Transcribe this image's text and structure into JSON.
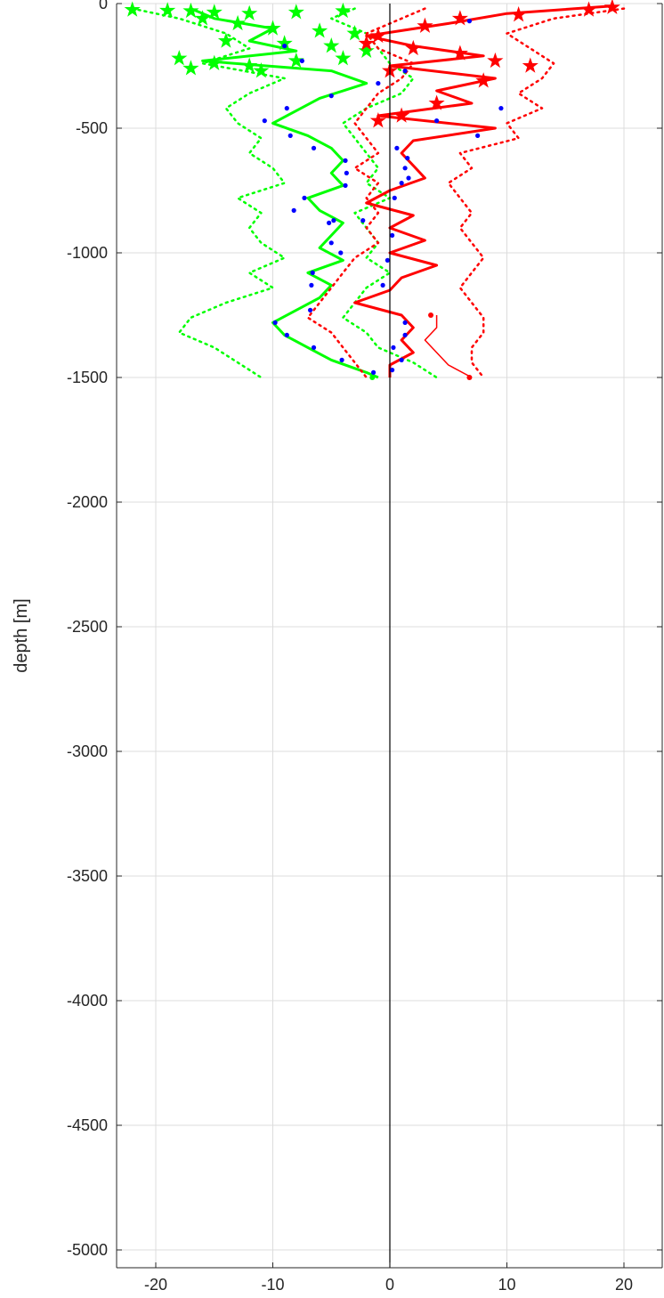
{
  "chart_data": {
    "type": "line",
    "title": "",
    "xlabel": "",
    "ylabel": "depth [m]",
    "xlim": [
      -23.3,
      23.3
    ],
    "ylim": [
      -5100,
      0
    ],
    "xticks": [
      -20,
      -10,
      0,
      10,
      20
    ],
    "xtick_labels": [
      "-20",
      "-10",
      "0",
      "10",
      "20"
    ],
    "yticks": [
      0,
      -500,
      -1000,
      -1500,
      -2000,
      -2500,
      -3000,
      -3500,
      -4000,
      -4500,
      -5000
    ],
    "ytick_labels": [
      "0",
      "-500",
      "-1000",
      "-1500",
      "-2000",
      "-2500",
      "-3000",
      "-3500",
      "-4000",
      "-4500",
      "-5000"
    ],
    "grid": true,
    "zero_line_x": 0,
    "colors": {
      "green": "#00ff00",
      "red": "#ff0000",
      "dots": "#0000ff",
      "grid": "#dcdcdc",
      "axis": "#262626"
    },
    "series": [
      {
        "color": "green",
        "style": "solid-thick",
        "depth": [
          -20,
          -60,
          -100,
          -150,
          -190,
          -230,
          -270,
          -320,
          -380,
          -430,
          -480,
          -530,
          -580,
          -630,
          -680,
          -730,
          -780,
          -830,
          -880,
          -930,
          -980,
          -1030,
          -1080,
          -1130,
          -1180,
          -1230,
          -1280,
          -1330,
          -1380,
          -1430,
          -1480,
          -1500
        ],
        "x": [
          -17,
          -15,
          -10,
          -12,
          -8,
          -16,
          -5,
          -2,
          -6,
          -8,
          -10,
          -7,
          -5,
          -4,
          -5,
          -4,
          -7,
          -6,
          -4,
          -5,
          -6,
          -4,
          -7,
          -5,
          -6,
          -8,
          -10,
          -9,
          -7,
          -5,
          -2,
          -1
        ]
      },
      {
        "color": "green",
        "style": "dotted",
        "depth": [
          -20,
          -60,
          -120,
          -180,
          -240,
          -300,
          -360,
          -420,
          -480,
          -540,
          -600,
          -660,
          -720,
          -780,
          -840,
          -900,
          -960,
          -1020,
          -1080,
          -1140,
          -1200,
          -1260,
          -1320,
          -1380,
          -1440,
          -1500
        ],
        "x": [
          -22,
          -18,
          -14,
          -12,
          -16,
          -9,
          -12,
          -14,
          -13,
          -11,
          -12,
          -10,
          -9,
          -13,
          -11,
          -12,
          -11,
          -9,
          -12,
          -10,
          -14,
          -17,
          -18,
          -15,
          -13,
          -11
        ]
      },
      {
        "color": "green",
        "style": "dotted",
        "depth": [
          -20,
          -60,
          -120,
          -180,
          -240,
          -300,
          -360,
          -420,
          -480,
          -540,
          -600,
          -660,
          -720,
          -780,
          -840,
          -900,
          -960,
          -1020,
          -1080,
          -1140,
          -1200,
          -1260,
          -1320,
          -1380,
          -1440,
          -1500
        ],
        "x": [
          -3,
          -5,
          -2,
          -1,
          0,
          2,
          1,
          -2,
          -4,
          -3,
          -2,
          -1,
          -2,
          0,
          -3,
          -2,
          -1,
          -2,
          0,
          -2,
          -3,
          -4,
          -2,
          -1,
          2,
          4
        ]
      },
      {
        "color": "red",
        "style": "solid-thick",
        "depth": [
          -10,
          -40,
          -80,
          -130,
          -170,
          -210,
          -250,
          -300,
          -350,
          -400,
          -450,
          -500,
          -550,
          -600,
          -650,
          -700,
          -750,
          -800,
          -850,
          -900,
          -950,
          -1000,
          -1050,
          -1100,
          -1150,
          -1200,
          -1250,
          -1300,
          -1350,
          -1400,
          -1450,
          -1500
        ],
        "x": [
          19,
          10,
          5,
          -2,
          2,
          8,
          0,
          9,
          4,
          7,
          -1,
          9,
          2,
          1,
          2,
          3,
          0,
          -2,
          2,
          0,
          3,
          0,
          4,
          1,
          0,
          -3,
          1,
          2,
          1,
          2,
          0,
          0
        ]
      },
      {
        "color": "red",
        "style": "solid-thin",
        "depth": [
          -1250,
          -1300,
          -1350,
          -1400,
          -1450,
          -1500
        ],
        "x": [
          4,
          4,
          3,
          4,
          5,
          7
        ]
      },
      {
        "color": "red",
        "style": "dotted",
        "depth": [
          -20,
          -60,
          -120,
          -180,
          -240,
          -300,
          -360,
          -420,
          -480,
          -540,
          -600,
          -660,
          -720,
          -780,
          -840,
          -900,
          -960,
          -1020,
          -1080,
          -1140,
          -1200,
          -1260,
          -1320,
          -1380,
          -1440,
          -1500
        ],
        "x": [
          20,
          14,
          10,
          12,
          14,
          13,
          11,
          13,
          10,
          11,
          6,
          7,
          5,
          6,
          7,
          6,
          7,
          8,
          7,
          6,
          7,
          8,
          8,
          7,
          7,
          8
        ]
      },
      {
        "color": "red",
        "style": "dotted",
        "depth": [
          -20,
          -60,
          -120,
          -180,
          -240,
          -300,
          -360,
          -420,
          -480,
          -540,
          -600,
          -660,
          -720,
          -780,
          -840,
          -900,
          -960,
          -1020,
          -1080,
          -1140,
          -1200,
          -1260,
          -1320,
          -1380,
          -1440,
          -1500
        ],
        "x": [
          3,
          1,
          -2,
          -1,
          2,
          1,
          -1,
          -2,
          -3,
          -2,
          -1,
          -3,
          -1,
          -2,
          -1,
          -2,
          -1,
          -3,
          -4,
          -5,
          -6,
          -7,
          -5,
          -4,
          -3,
          -2
        ]
      }
    ],
    "markers": {
      "green_stars": [
        {
          "x": -22,
          "y": -25
        },
        {
          "x": -19,
          "y": -28
        },
        {
          "x": -17,
          "y": -30
        },
        {
          "x": -15,
          "y": -35
        },
        {
          "x": -12,
          "y": -40
        },
        {
          "x": -8,
          "y": -35
        },
        {
          "x": -4,
          "y": -30
        },
        {
          "x": -16,
          "y": -60
        },
        {
          "x": -13,
          "y": -80
        },
        {
          "x": -10,
          "y": -100
        },
        {
          "x": -6,
          "y": -110
        },
        {
          "x": -3,
          "y": -120
        },
        {
          "x": -14,
          "y": -150
        },
        {
          "x": -9,
          "y": -160
        },
        {
          "x": -5,
          "y": -170
        },
        {
          "x": -2,
          "y": -190
        },
        {
          "x": -18,
          "y": -220
        },
        {
          "x": -15,
          "y": -240
        },
        {
          "x": -12,
          "y": -250
        },
        {
          "x": -8,
          "y": -230
        },
        {
          "x": -4,
          "y": -220
        },
        {
          "x": -17,
          "y": -260
        },
        {
          "x": -11,
          "y": -270
        }
      ],
      "red_stars": [
        {
          "x": 19,
          "y": -15
        },
        {
          "x": 17,
          "y": -25
        },
        {
          "x": 11,
          "y": -45
        },
        {
          "x": 6,
          "y": -60
        },
        {
          "x": 3,
          "y": -90
        },
        {
          "x": -1,
          "y": -130
        },
        {
          "x": -2,
          "y": -160
        },
        {
          "x": 2,
          "y": -180
        },
        {
          "x": 6,
          "y": -200
        },
        {
          "x": 9,
          "y": -230
        },
        {
          "x": 12,
          "y": -250
        },
        {
          "x": 0,
          "y": -270
        },
        {
          "x": 8,
          "y": -310
        },
        {
          "x": 4,
          "y": -400
        },
        {
          "x": 1,
          "y": -450
        },
        {
          "x": -1,
          "y": -470
        }
      ],
      "blue_dots": [
        {
          "x": 6.8,
          "y": -70
        },
        {
          "x": -9,
          "y": -170
        },
        {
          "x": -7.5,
          "y": -230
        },
        {
          "x": 1.3,
          "y": -270
        },
        {
          "x": -1,
          "y": -320
        },
        {
          "x": -5,
          "y": -370
        },
        {
          "x": 9.5,
          "y": -420
        },
        {
          "x": -8.8,
          "y": -420
        },
        {
          "x": 4,
          "y": -470
        },
        {
          "x": -10.7,
          "y": -470
        },
        {
          "x": 7.5,
          "y": -530
        },
        {
          "x": -8.5,
          "y": -530
        },
        {
          "x": 0.6,
          "y": -580
        },
        {
          "x": -6.5,
          "y": -580
        },
        {
          "x": 1.5,
          "y": -620
        },
        {
          "x": -3.8,
          "y": -630
        },
        {
          "x": 1.3,
          "y": -660
        },
        {
          "x": -3.7,
          "y": -680
        },
        {
          "x": 1.6,
          "y": -700
        },
        {
          "x": -3.8,
          "y": -730
        },
        {
          "x": 1,
          "y": -720
        },
        {
          "x": -7.3,
          "y": -780
        },
        {
          "x": 0.4,
          "y": -780
        },
        {
          "x": -8.2,
          "y": -830
        },
        {
          "x": -4.8,
          "y": -870
        },
        {
          "x": -2.3,
          "y": -870
        },
        {
          "x": -5.2,
          "y": -880
        },
        {
          "x": 0.2,
          "y": -930
        },
        {
          "x": -5,
          "y": -960
        },
        {
          "x": -4.2,
          "y": -1000
        },
        {
          "x": -0.2,
          "y": -1030
        },
        {
          "x": -6.6,
          "y": -1080
        },
        {
          "x": -6.7,
          "y": -1130
        },
        {
          "x": -0.6,
          "y": -1130
        },
        {
          "x": -6.8,
          "y": -1230
        },
        {
          "x": 1.3,
          "y": -1280
        },
        {
          "x": -9.8,
          "y": -1280
        },
        {
          "x": 1.3,
          "y": -1330
        },
        {
          "x": -8.8,
          "y": -1330
        },
        {
          "x": -6.5,
          "y": -1380
        },
        {
          "x": 0.3,
          "y": -1380
        },
        {
          "x": -4.1,
          "y": -1430
        },
        {
          "x": 1,
          "y": -1430
        },
        {
          "x": -1.4,
          "y": -1480
        },
        {
          "x": 0.2,
          "y": -1470
        }
      ],
      "end_dots": [
        {
          "x": 6.8,
          "y": -1500,
          "color": "red"
        },
        {
          "x": -1.5,
          "y": -1500,
          "color": "green"
        },
        {
          "x": 3.5,
          "y": -1250,
          "color": "red"
        }
      ]
    }
  }
}
